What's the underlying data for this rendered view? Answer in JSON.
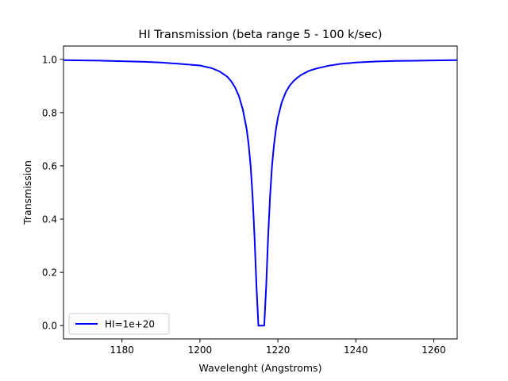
{
  "chart_data": {
    "type": "line",
    "title": "HI Transmission (beta range 5 - 100 k/sec)",
    "xlabel": "Wavelenght (Angstroms)",
    "ylabel": "Transmission",
    "xlim": [
      1165,
      1266
    ],
    "ylim": [
      -0.05,
      1.05
    ],
    "x_ticks": [
      1180,
      1200,
      1220,
      1240,
      1260
    ],
    "y_ticks": [
      0.0,
      0.2,
      0.4,
      0.6,
      0.8,
      1.0
    ],
    "x_tick_labels": [
      "1180",
      "1200",
      "1220",
      "1240",
      "1260"
    ],
    "y_tick_labels": [
      "0.0",
      "0.2",
      "0.4",
      "0.6",
      "0.8",
      "1.0"
    ],
    "grid": false,
    "legend_position": "lower-left",
    "colors": {
      "series": "#0000ff"
    },
    "series": [
      {
        "name": "HI=1e+20",
        "color": "#0000ff",
        "x": [
          1165,
          1170,
          1175,
          1180,
          1185,
          1190,
          1195,
          1200,
          1203,
          1205,
          1207,
          1208,
          1209,
          1210,
          1211,
          1212,
          1212.5,
          1213,
          1213.5,
          1214,
          1214.5,
          1215.0,
          1216.5,
          1217.0,
          1217.5,
          1218,
          1218.5,
          1219,
          1219.5,
          1220,
          1221,
          1222,
          1223,
          1224,
          1225,
          1226,
          1228,
          1230,
          1233,
          1236,
          1240,
          1245,
          1250,
          1255,
          1260,
          1266
        ],
        "y": [
          0.997,
          0.996,
          0.995,
          0.993,
          0.991,
          0.988,
          0.983,
          0.977,
          0.967,
          0.955,
          0.935,
          0.918,
          0.895,
          0.862,
          0.812,
          0.737,
          0.679,
          0.601,
          0.488,
          0.335,
          0.15,
          0.0,
          0.0,
          0.15,
          0.335,
          0.488,
          0.601,
          0.679,
          0.737,
          0.781,
          0.839,
          0.876,
          0.901,
          0.918,
          0.931,
          0.942,
          0.957,
          0.966,
          0.976,
          0.983,
          0.988,
          0.992,
          0.994,
          0.995,
          0.996,
          0.997
        ]
      }
    ]
  }
}
